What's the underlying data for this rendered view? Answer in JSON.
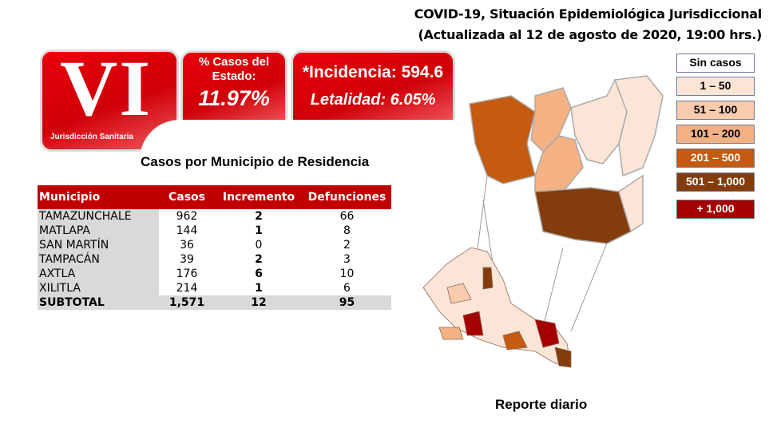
{
  "header": {
    "line1": "COVID-19, Situación Epidemiológica Jurisdiccional",
    "line2": "(Actualizada al 12 de agosto de 2020, 19:00 hrs.)"
  },
  "logo": {
    "numeral": "VI",
    "label": "Jurisdicción Sanitaria"
  },
  "state_share": {
    "label1": "% Casos del",
    "label2": "Estado:",
    "value": "11.97%"
  },
  "indicators": {
    "incidence": "*Incidencia: 594.6",
    "lethality": "Letalidad: 6.05%"
  },
  "table_title": "Casos por Municipio  de Residencia",
  "table": {
    "columns": [
      "Municipio",
      "Casos",
      "Incremento",
      "Defunciones"
    ],
    "rows": [
      [
        "TAMAZUNCHALE",
        "962",
        "2",
        "66"
      ],
      [
        "MATLAPA",
        "144",
        "1",
        "8"
      ],
      [
        "SAN MARTÍN",
        "36",
        "0",
        "2"
      ],
      [
        "TAMPACÁN",
        "39",
        "2",
        "3"
      ],
      [
        "AXTLA",
        "176",
        "6",
        "10"
      ],
      [
        "XILITLA",
        "214",
        "1",
        "6"
      ]
    ],
    "subtotal": [
      "SUBTOTAL",
      "1,571",
      "12",
      "95"
    ]
  },
  "legend": [
    {
      "label": "Sin casos",
      "color": "#ffffff",
      "text": "#000000"
    },
    {
      "label": "1 – 50",
      "color": "#fbe5d6",
      "text": "#000000"
    },
    {
      "label": "51 – 100",
      "color": "#f8cbad",
      "text": "#000000"
    },
    {
      "label": "101 – 200",
      "color": "#f4b183",
      "text": "#000000"
    },
    {
      "label": "201 – 500",
      "color": "#c55a11",
      "text": "#ffffff"
    },
    {
      "label": "501 – 1,000",
      "color": "#843c0c",
      "text": "#ffffff"
    },
    {
      "label": "+ 1,000",
      "color": "#a50000",
      "text": "#ffffff"
    }
  ],
  "footer": "Reporte diario"
}
